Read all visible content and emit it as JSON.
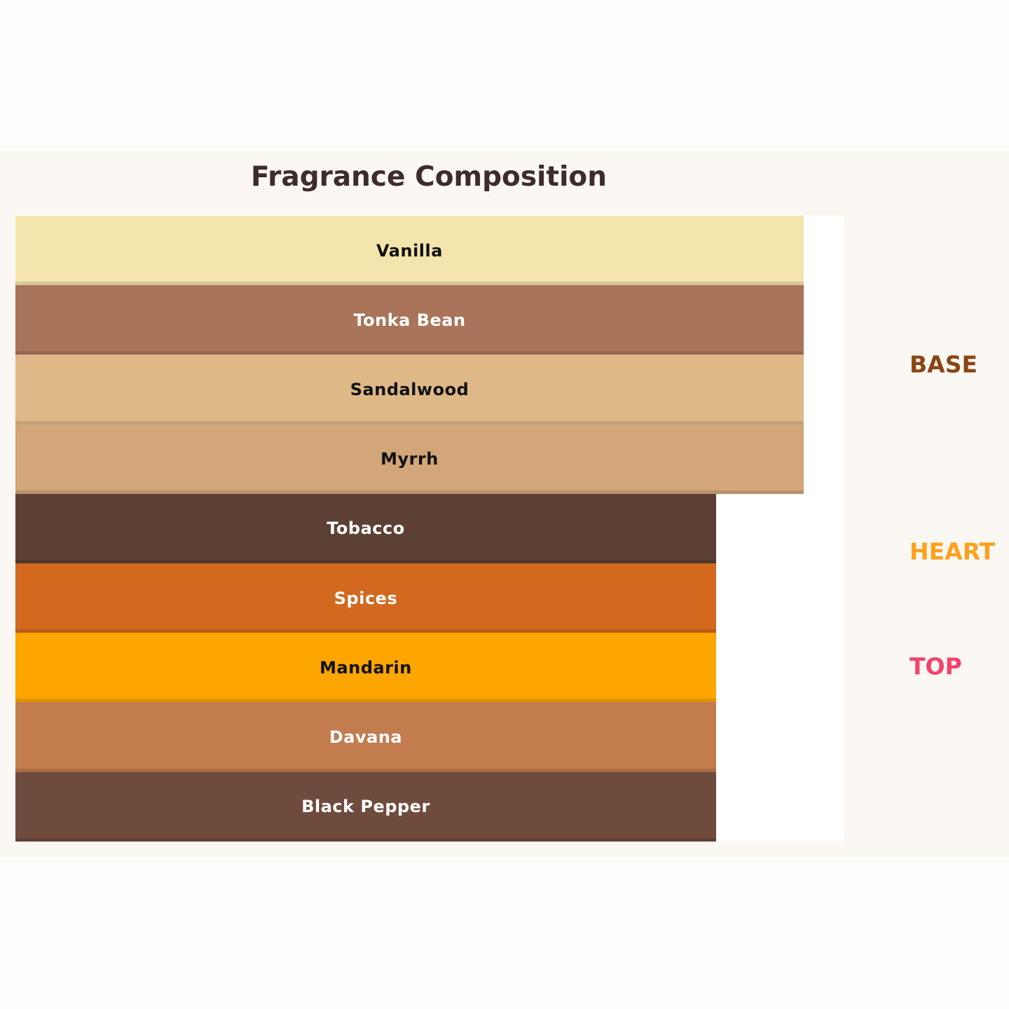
{
  "title": "Fragrance Composition",
  "layers": [
    {
      "label": "Vanilla",
      "color": "#f3e5ab",
      "group": 0
    },
    {
      "label": "Tonka Bean",
      "color": "#a9745a",
      "group": 0
    },
    {
      "label": "Sandalwood",
      "color": "#deb887",
      "group": 0
    },
    {
      "label": "Myrrh",
      "color": "#d2a679",
      "group": 0
    },
    {
      "label": "Tobacco",
      "color": "#5d4034",
      "group": 1
    },
    {
      "label": "Spices",
      "color": "#d2691e",
      "group": 1
    },
    {
      "label": "Mandarin",
      "color": "#ffa500",
      "group": 2
    },
    {
      "label": "Davana",
      "color": "#c27c4e",
      "group": 2
    },
    {
      "label": "Black Pepper",
      "color": "#6f4b3e",
      "group": 2
    }
  ],
  "groups": [
    {
      "label": "BASE",
      "color": "#8b4513"
    },
    {
      "label": "HEART",
      "color": "#ffa01e"
    },
    {
      "label": "TOP",
      "color": "#f5426c"
    }
  ]
}
